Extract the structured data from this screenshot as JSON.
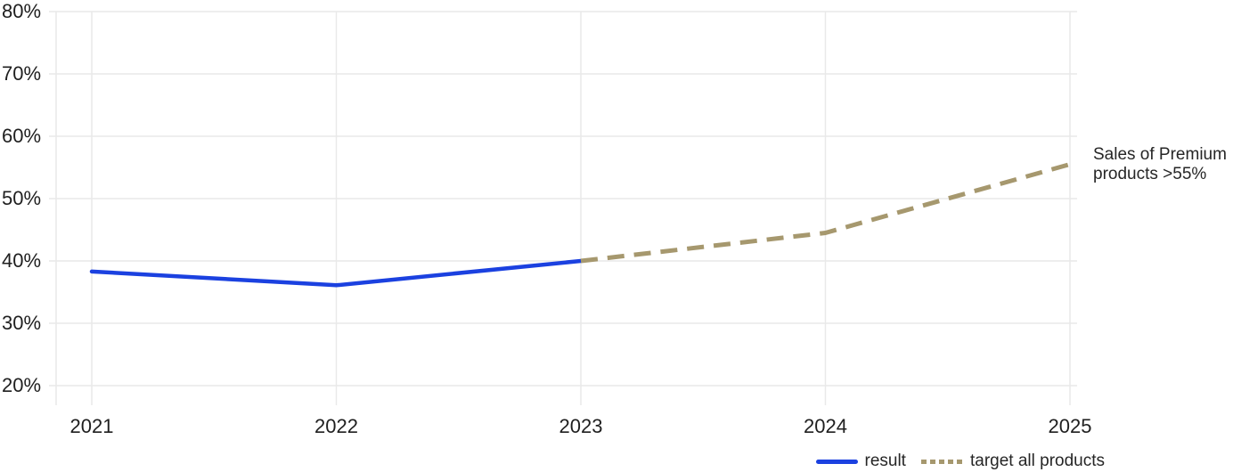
{
  "chart_data": {
    "type": "line",
    "title": "",
    "xlabel": "",
    "ylabel": "",
    "x": [
      2021,
      2022,
      2023,
      2024,
      2025
    ],
    "x_tick_labels": [
      "2021",
      "2022",
      "2023",
      "2024",
      "2025"
    ],
    "y_tick_values": [
      80,
      70,
      60,
      50,
      40,
      30,
      20
    ],
    "y_tick_labels": [
      "80%",
      "70%",
      "60%",
      "50%",
      "40%",
      "30%",
      "20%"
    ],
    "ylim": [
      20,
      80
    ],
    "y_unit": "%",
    "grid": true,
    "legend_position": "bottom-right",
    "series": [
      {
        "name": "result",
        "style": "solid",
        "color": "#1b41e0",
        "points": [
          [
            2021,
            38.3
          ],
          [
            2022,
            36.1
          ],
          [
            2023,
            40
          ]
        ]
      },
      {
        "name": "target all products",
        "style": "dashed",
        "color": "#a6986e",
        "points": [
          [
            2023,
            40
          ],
          [
            2024,
            44.5
          ],
          [
            2025,
            55.5
          ]
        ]
      }
    ],
    "annotation": "Sales of Premium\nproducts >55%",
    "colors": {
      "result_line": "#1b41e0",
      "target_line": "#a6986e",
      "gridline": "#e9e9e9",
      "text": "#1f1f1f"
    }
  },
  "legend": {
    "result_label": "result",
    "target_label": "target all products"
  }
}
